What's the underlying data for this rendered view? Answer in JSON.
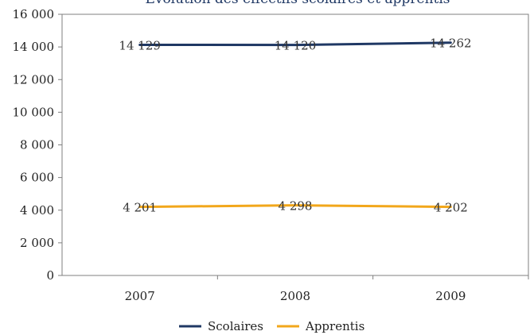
{
  "chart_data": {
    "type": "line",
    "title": "Evolution des effectifs scolaires et apprentis",
    "categories": [
      "2007",
      "2008",
      "2009"
    ],
    "ylim": [
      0,
      16000
    ],
    "ytick_labels": [
      "0",
      "2 000",
      "4 000",
      "6 000",
      "8 000",
      "10 000",
      "12 000",
      "14 000",
      "16 000"
    ],
    "grid": false,
    "legend_position": "bottom",
    "series": [
      {
        "name": "Scolaires",
        "values": [
          14129,
          14120,
          14262
        ],
        "labels": [
          "14 129",
          "14 120",
          "14 262"
        ],
        "color": "#1f3864"
      },
      {
        "name": "Apprentis",
        "values": [
          4201,
          4298,
          4202
        ],
        "labels": [
          "4 201",
          "4 298",
          "4 202"
        ],
        "color": "#f2a71b"
      }
    ]
  }
}
